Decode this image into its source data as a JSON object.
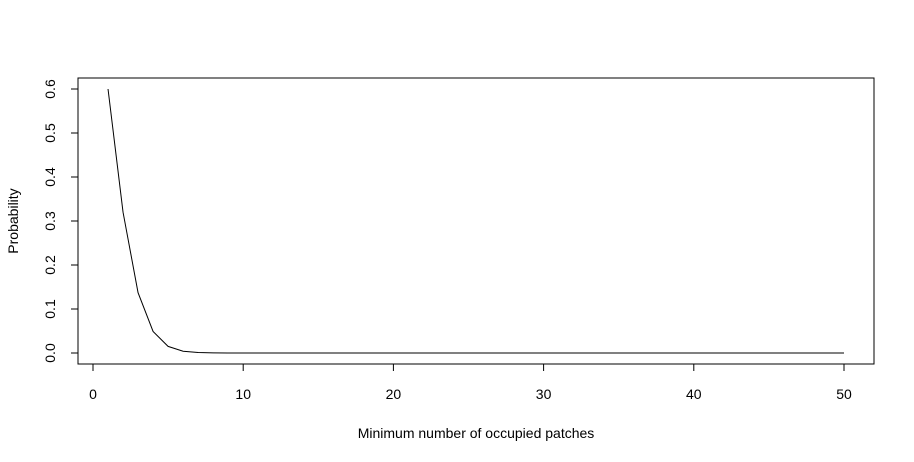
{
  "chart_data": {
    "type": "line",
    "title": "",
    "xlabel": "Minimum number of occupied patches",
    "ylabel": "Probability",
    "xlim": [
      1,
      50
    ],
    "ylim": [
      0,
      0.6
    ],
    "xticks": [
      0,
      10,
      20,
      30,
      40,
      50
    ],
    "yticks": [
      0.0,
      0.1,
      0.2,
      0.3,
      0.4,
      0.5,
      0.6
    ],
    "ytick_labels": [
      "0.0",
      "0.1",
      "0.2",
      "0.3",
      "0.4",
      "0.5",
      "0.6"
    ],
    "xtick_labels": [
      "0",
      "10",
      "20",
      "30",
      "40",
      "50"
    ],
    "grid": false,
    "legend": "none",
    "line_color": "#000000",
    "series": [
      {
        "x": [
          1,
          2,
          3,
          4,
          5,
          6,
          7,
          8,
          9,
          10,
          11,
          12,
          13,
          14,
          15,
          16,
          17,
          18,
          19,
          20,
          21,
          22,
          23,
          24,
          25,
          26,
          27,
          28,
          29,
          30,
          31,
          32,
          33,
          34,
          35,
          36,
          37,
          38,
          39,
          40,
          41,
          42,
          43,
          44,
          45,
          46,
          47,
          48,
          49,
          50
        ],
        "values": [
          0.6,
          0.32,
          0.137,
          0.049,
          0.015,
          0.004,
          0.001,
          0.0002,
          0,
          0,
          0,
          0,
          0,
          0,
          0,
          0,
          0,
          0,
          0,
          0,
          0,
          0,
          0,
          0,
          0,
          0,
          0,
          0,
          0,
          0,
          0,
          0,
          0,
          0,
          0,
          0,
          0,
          0,
          0,
          0,
          0,
          0,
          0,
          0,
          0,
          0,
          0,
          0,
          0,
          0
        ]
      }
    ]
  }
}
